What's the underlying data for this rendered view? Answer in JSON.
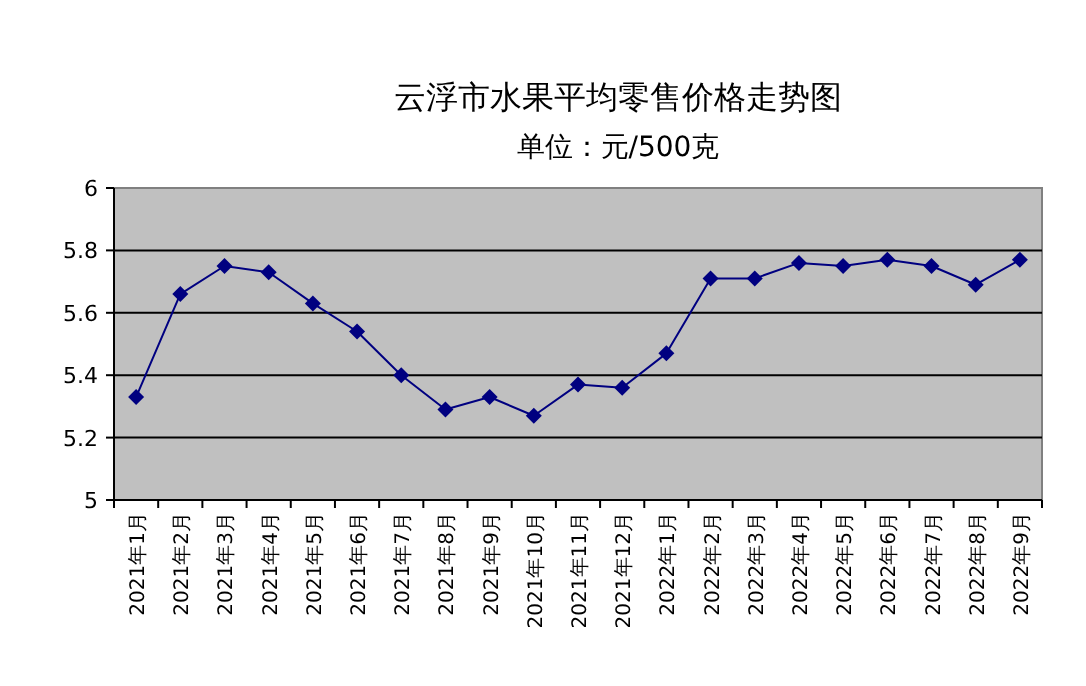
{
  "chart_data": {
    "type": "line",
    "title": "云浮市水果平均零售价格走势图",
    "subtitle": "单位：元/500克",
    "categories": [
      "2021年1月",
      "2021年2月",
      "2021年3月",
      "2021年4月",
      "2021年5月",
      "2021年6月",
      "2021年7月",
      "2021年8月",
      "2021年9月",
      "2021年10月",
      "2021年11月",
      "2021年12月",
      "2022年1月",
      "2022年2月",
      "2022年3月",
      "2022年4月",
      "2022年5月",
      "2022年6月",
      "2022年7月",
      "2022年8月",
      "2022年9月"
    ],
    "series": [
      {
        "color": "#000080",
        "values": [
          5.33,
          5.66,
          5.75,
          5.73,
          5.63,
          5.54,
          5.4,
          5.29,
          5.33,
          5.27,
          5.37,
          5.36,
          5.47,
          5.71,
          5.71,
          5.76,
          5.75,
          5.77,
          5.75,
          5.69,
          5.77
        ]
      }
    ],
    "ylim": [
      5,
      6
    ],
    "yticks": [
      5,
      5.2,
      5.4,
      5.6,
      5.8,
      6
    ],
    "grid": "y",
    "marker": "diamond",
    "line_style": "solid"
  }
}
